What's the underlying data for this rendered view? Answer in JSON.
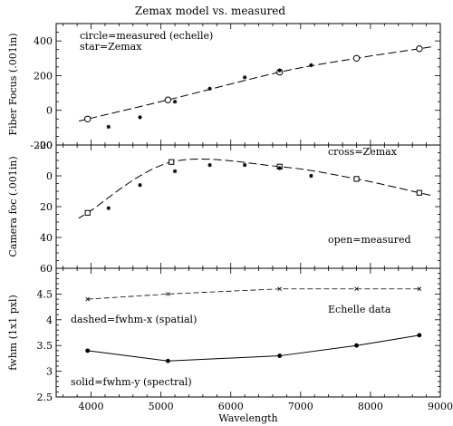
{
  "figure": {
    "title": "Zemax model vs. measured"
  },
  "chart_data": [
    {
      "type": "scatter",
      "ylabel": "Fiber Focus (.001in)",
      "ylim": [
        -200,
        500
      ],
      "xlim": [
        3500,
        9000
      ],
      "yticks": [
        -200,
        0,
        200,
        400
      ],
      "annotations": [
        "circle=measured (echelle)",
        "star=Zemax"
      ],
      "series": [
        {
          "marker": "circle",
          "line": "dashed",
          "x": [
            3950,
            5100,
            6700,
            7800,
            8700
          ],
          "y": [
            -50,
            60,
            220,
            300,
            355
          ]
        },
        {
          "marker": "star",
          "x": [
            4250,
            4700,
            5200,
            5700,
            6200,
            6700,
            7150
          ],
          "y": [
            -95,
            -40,
            50,
            125,
            190,
            230,
            260
          ]
        }
      ]
    },
    {
      "type": "scatter",
      "ylabel": "Camera foc (.001in)",
      "ylim": [
        60,
        -20
      ],
      "xlim": [
        3500,
        9000
      ],
      "yticks": [
        -20,
        0,
        20,
        40,
        60
      ],
      "annotations": [
        "cross=Zemax",
        "open=measured"
      ],
      "series": [
        {
          "marker": "square",
          "line": "dashed",
          "x": [
            3950,
            5150,
            6700,
            7800,
            8700
          ],
          "y": [
            24,
            -9,
            -6,
            2,
            11
          ]
        },
        {
          "marker": "star",
          "x": [
            4250,
            4700,
            5200,
            5700,
            6200,
            6700,
            7150
          ],
          "y": [
            21,
            6,
            -3,
            -7,
            -7,
            -5,
            0
          ]
        }
      ]
    },
    {
      "type": "line",
      "ylabel": "fwhm (1x1 pxl)",
      "xlabel": "Wavelength",
      "ylim": [
        2.5,
        5
      ],
      "xlim": [
        3500,
        9000
      ],
      "yticks": [
        2.5,
        3,
        3.5,
        4,
        4.5
      ],
      "xticks": [
        4000,
        5000,
        6000,
        7000,
        8000,
        9000
      ],
      "annotations": [
        "dashed=fwhm-x (spatial)",
        "Echelle data",
        "solid=fwhm-y (spectral)"
      ],
      "series": [
        {
          "marker": "cross",
          "line": "dashed",
          "x": [
            3950,
            5100,
            6700,
            7800,
            8700
          ],
          "y": [
            4.4,
            4.5,
            4.6,
            4.6,
            4.6
          ]
        },
        {
          "marker": "dot",
          "line": "solid",
          "x": [
            3950,
            5100,
            6700,
            7800,
            8700
          ],
          "y": [
            3.4,
            3.2,
            3.3,
            3.5,
            3.7
          ]
        }
      ]
    }
  ]
}
